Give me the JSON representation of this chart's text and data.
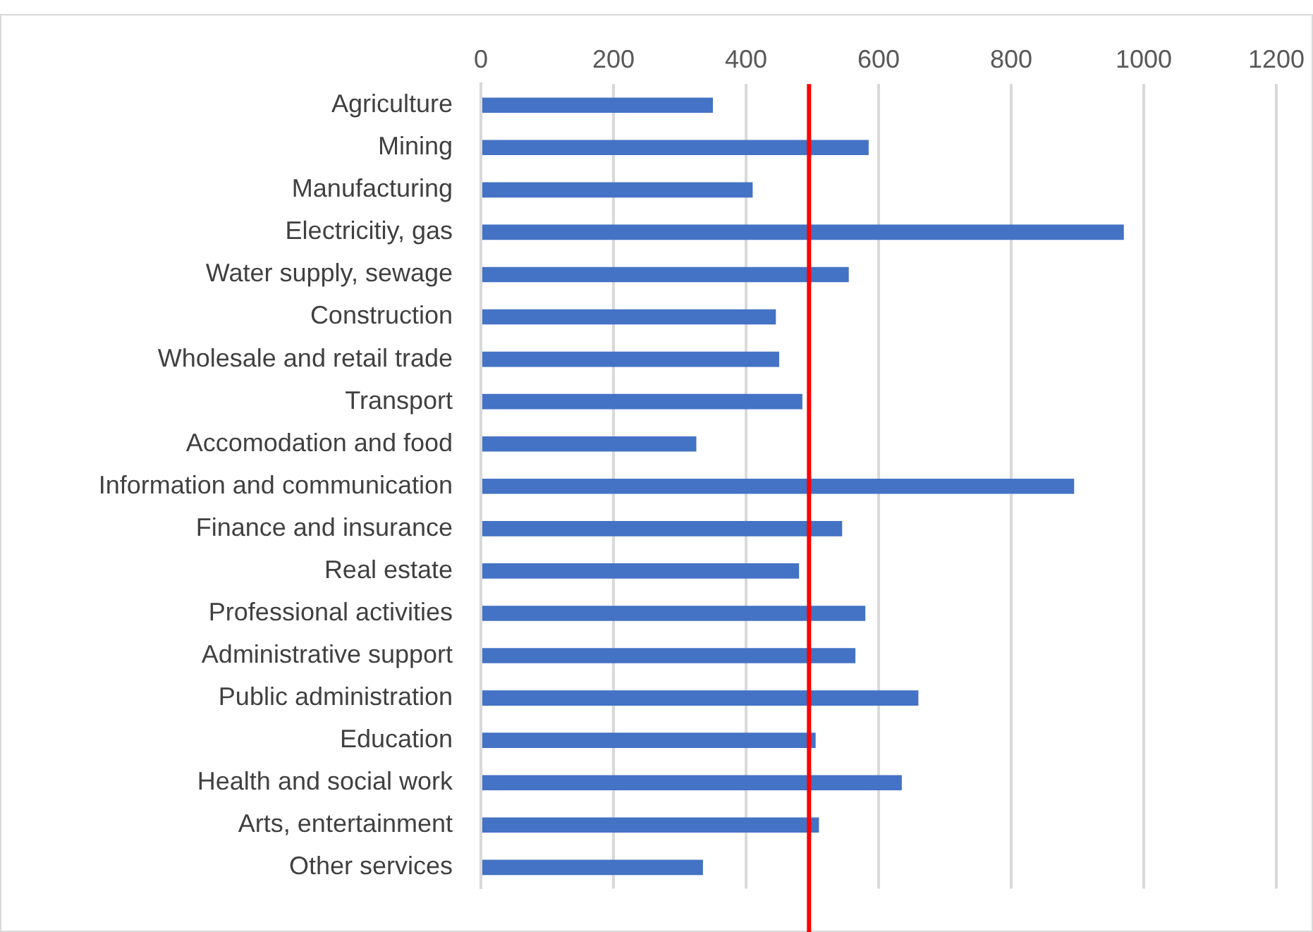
{
  "chart_data": {
    "type": "bar",
    "orientation": "horizontal",
    "categories": [
      "Agriculture",
      "Mining",
      "Manufacturing",
      "Electricitiy, gas",
      "Water supply, sewage",
      "Construction",
      "Wholesale and retail trade",
      "Transport",
      "Accomodation and food",
      "Information and communication",
      "Finance and insurance",
      "Real estate",
      "Professional activities",
      "Administrative support",
      "Public administration",
      "Education",
      "Health and social work",
      "Arts, entertainment",
      "Other services"
    ],
    "values": [
      350,
      585,
      410,
      970,
      555,
      445,
      450,
      485,
      325,
      895,
      545,
      480,
      580,
      565,
      660,
      505,
      635,
      510,
      335
    ],
    "color": "#4472c4",
    "xlim": [
      0,
      1200
    ],
    "xticks": [
      0,
      200,
      400,
      600,
      800,
      1000,
      1200
    ],
    "grid": "x",
    "legend": false,
    "ref_lines": [
      {
        "axis": "x",
        "value": 495,
        "color": "#ff0000"
      }
    ]
  }
}
